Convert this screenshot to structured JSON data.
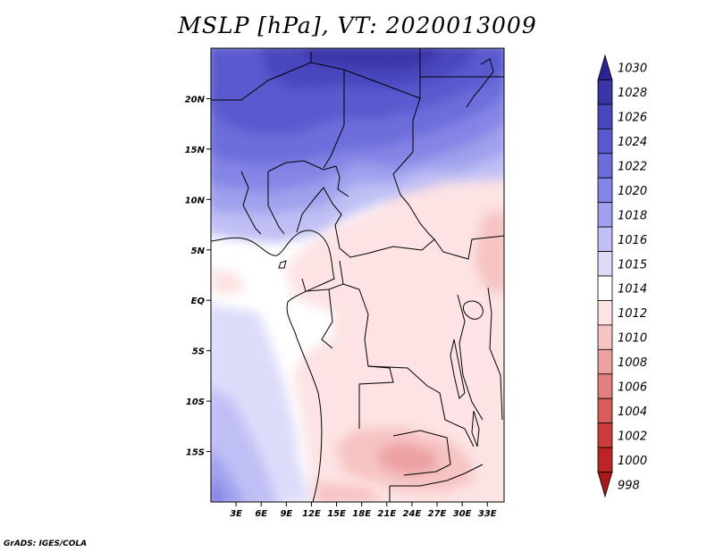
{
  "title": "MSLP [hPa], VT: 2020013009",
  "credit": "GrADS: IGES/COLA",
  "map": {
    "lon_range": [
      0,
      35
    ],
    "lat_range": [
      -20,
      25
    ],
    "x_ticks": [
      {
        "lon": 3,
        "label": "3E"
      },
      {
        "lon": 6,
        "label": "6E"
      },
      {
        "lon": 9,
        "label": "9E"
      },
      {
        "lon": 12,
        "label": "12E"
      },
      {
        "lon": 15,
        "label": "15E"
      },
      {
        "lon": 18,
        "label": "18E"
      },
      {
        "lon": 21,
        "label": "21E"
      },
      {
        "lon": 24,
        "label": "24E"
      },
      {
        "lon": 27,
        "label": "27E"
      },
      {
        "lon": 30,
        "label": "30E"
      },
      {
        "lon": 33,
        "label": "33E"
      }
    ],
    "y_ticks": [
      {
        "lat": 20,
        "label": "20N"
      },
      {
        "lat": 15,
        "label": "15N"
      },
      {
        "lat": 10,
        "label": "10N"
      },
      {
        "lat": 5,
        "label": "5N"
      },
      {
        "lat": 0,
        "label": "EQ"
      },
      {
        "lat": -5,
        "label": "5S"
      },
      {
        "lat": -10,
        "label": "10S"
      },
      {
        "lat": -15,
        "label": "15S"
      }
    ]
  },
  "colorbar": {
    "levels": [
      {
        "label": "1030",
        "color": "#2b2391"
      },
      {
        "label": "1028",
        "color": "#3a35a8"
      },
      {
        "label": "1026",
        "color": "#4a47bd"
      },
      {
        "label": "1024",
        "color": "#5a5ad0"
      },
      {
        "label": "1022",
        "color": "#6d6ddb"
      },
      {
        "label": "1020",
        "color": "#8585e6"
      },
      {
        "label": "1018",
        "color": "#a0a0ee"
      },
      {
        "label": "1016",
        "color": "#bfbff5"
      },
      {
        "label": "1015",
        "color": "#dcdcfa"
      },
      {
        "label": "1014",
        "color": "#ffffff"
      },
      {
        "label": "1012",
        "color": "#fde3e3"
      },
      {
        "label": "1010",
        "color": "#f7c3c3"
      },
      {
        "label": "1008",
        "color": "#eda1a1"
      },
      {
        "label": "1006",
        "color": "#e27f7f"
      },
      {
        "label": "1004",
        "color": "#d85c5c"
      },
      {
        "label": "1002",
        "color": "#cd3b3b"
      },
      {
        "label": "1000",
        "color": "#bd2525"
      },
      {
        "label": "998",
        "color": "#a81919"
      }
    ]
  }
}
